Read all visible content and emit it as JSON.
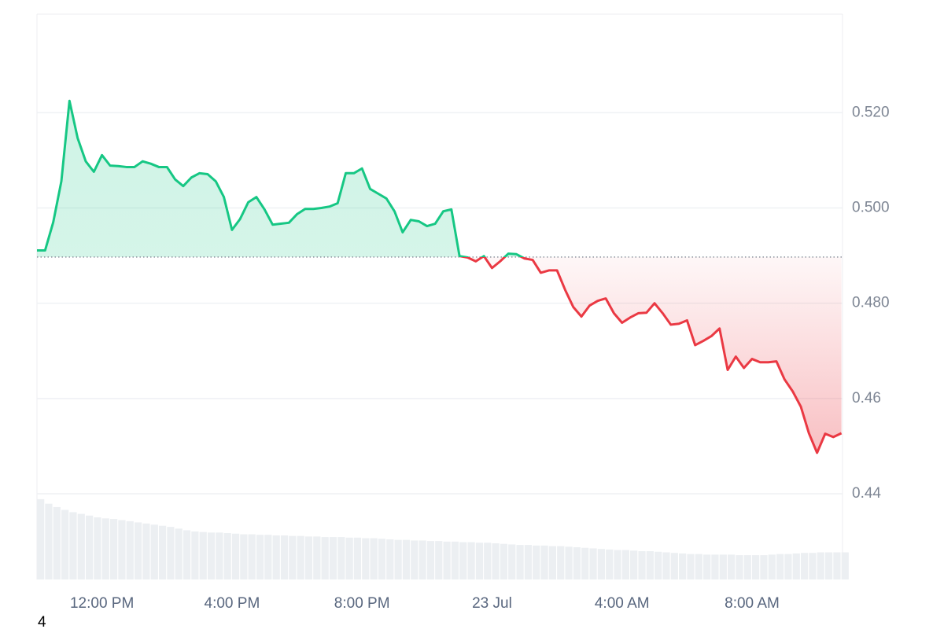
{
  "chart_data": {
    "type": "line",
    "x": [
      600,
      615,
      630,
      645,
      660,
      675,
      690,
      705,
      720,
      735,
      750,
      765,
      780,
      795,
      810,
      825,
      840,
      855,
      870,
      885,
      900,
      915,
      930,
      945,
      960,
      975,
      990,
      1005,
      1020,
      1035,
      1050,
      1065,
      1080,
      1095,
      1110,
      1125,
      1140,
      1155,
      1170,
      1185,
      1200,
      1215,
      1230,
      1245,
      1260,
      1275,
      1290,
      1305,
      1320,
      1335,
      1350,
      1365,
      1380,
      1395,
      1410,
      1425,
      1440,
      1455,
      1470,
      1485,
      1500,
      1515,
      1530,
      1545,
      1560,
      1575,
      1590,
      1605,
      1620,
      1635,
      1650,
      1665,
      1680,
      1695,
      1710,
      1725,
      1740,
      1755,
      1770,
      1785,
      1800,
      1815,
      1830,
      1845,
      1860,
      1875,
      1890,
      1905,
      1920,
      1935,
      1950,
      1965,
      1980,
      1995,
      2010,
      2025,
      2040,
      2055,
      2070,
      2085
    ],
    "values": [
      0.4911,
      0.4911,
      0.497,
      0.5056,
      0.5225,
      0.5147,
      0.5098,
      0.5076,
      0.5111,
      0.5089,
      0.5088,
      0.5086,
      0.5086,
      0.5098,
      0.5093,
      0.5086,
      0.5086,
      0.506,
      0.5046,
      0.5064,
      0.5073,
      0.5071,
      0.5056,
      0.5023,
      0.4954,
      0.4977,
      0.5012,
      0.5023,
      0.4997,
      0.4965,
      0.4967,
      0.4969,
      0.4987,
      0.4998,
      0.4998,
      0.5,
      0.5003,
      0.501,
      0.5073,
      0.5073,
      0.5083,
      0.504,
      0.503,
      0.502,
      0.4993,
      0.4949,
      0.4975,
      0.4972,
      0.4962,
      0.4967,
      0.4993,
      0.4997,
      0.4899,
      0.4896,
      0.4888,
      0.4899,
      0.4874,
      0.4888,
      0.4904,
      0.4903,
      0.4894,
      0.4891,
      0.4864,
      0.4869,
      0.4869,
      0.4828,
      0.4792,
      0.4772,
      0.4795,
      0.4805,
      0.481,
      0.4779,
      0.4759,
      0.477,
      0.4779,
      0.478,
      0.48,
      0.4779,
      0.4755,
      0.4757,
      0.4764,
      0.4712,
      0.4721,
      0.4731,
      0.4747,
      0.466,
      0.4688,
      0.4664,
      0.4683,
      0.4676,
      0.4676,
      0.4678,
      0.464,
      0.4615,
      0.4583,
      0.4527,
      0.4486,
      0.4526,
      0.4519,
      0.4527
    ],
    "volume_values": [
      14.2,
      13.4,
      12.8,
      12.3,
      11.9,
      11.6,
      11.3,
      11.0,
      10.8,
      10.7,
      10.5,
      10.3,
      10.1,
      9.9,
      9.7,
      9.5,
      9.3,
      9.0,
      8.7,
      8.5,
      8.4,
      8.3,
      8.3,
      8.2,
      8.1,
      8.0,
      8.0,
      7.9,
      7.9,
      7.8,
      7.8,
      7.7,
      7.7,
      7.6,
      7.6,
      7.5,
      7.5,
      7.5,
      7.4,
      7.4,
      7.3,
      7.3,
      7.2,
      7.1,
      7.0,
      7.0,
      6.9,
      6.9,
      6.8,
      6.8,
      6.7,
      6.7,
      6.6,
      6.6,
      6.5,
      6.5,
      6.4,
      6.3,
      6.2,
      6.1,
      6.1,
      6.0,
      6.0,
      5.9,
      5.9,
      5.8,
      5.7,
      5.6,
      5.5,
      5.4,
      5.3,
      5.2,
      5.2,
      5.1,
      5.0,
      5.0,
      4.9,
      4.8,
      4.7,
      4.6,
      4.5,
      4.5,
      4.4,
      4.4,
      4.4,
      4.4,
      4.3,
      4.3,
      4.3,
      4.3,
      4.4,
      4.5,
      4.5,
      4.6,
      4.7,
      4.7,
      4.8,
      4.8,
      4.8,
      4.8
    ],
    "baseline": 0.4897,
    "up_color": "#16c784",
    "down_color": "#ea3943",
    "volume_color": "#eceff2",
    "xlim": [
      600,
      2087
    ],
    "xticks": [
      {
        "value": 720,
        "label": "12:00 PM"
      },
      {
        "value": 960,
        "label": "4:00 PM"
      },
      {
        "value": 1200,
        "label": "8:00 PM"
      },
      {
        "value": 1440,
        "label": "23 Jul"
      },
      {
        "value": 1680,
        "label": "4:00 AM"
      },
      {
        "value": 1920,
        "label": "8:00 AM"
      }
    ],
    "ylim": [
      0.422,
      0.5407
    ],
    "yticks": [
      0.44,
      0.46,
      {
        "value": 0.48,
        "label": "0.480"
      },
      {
        "value": 0.5,
        "label": "0.500"
      },
      {
        "value": 0.52,
        "label": "0.520"
      }
    ],
    "y2lim": [
      0,
      100
    ],
    "grid": true,
    "footnote": "4"
  }
}
